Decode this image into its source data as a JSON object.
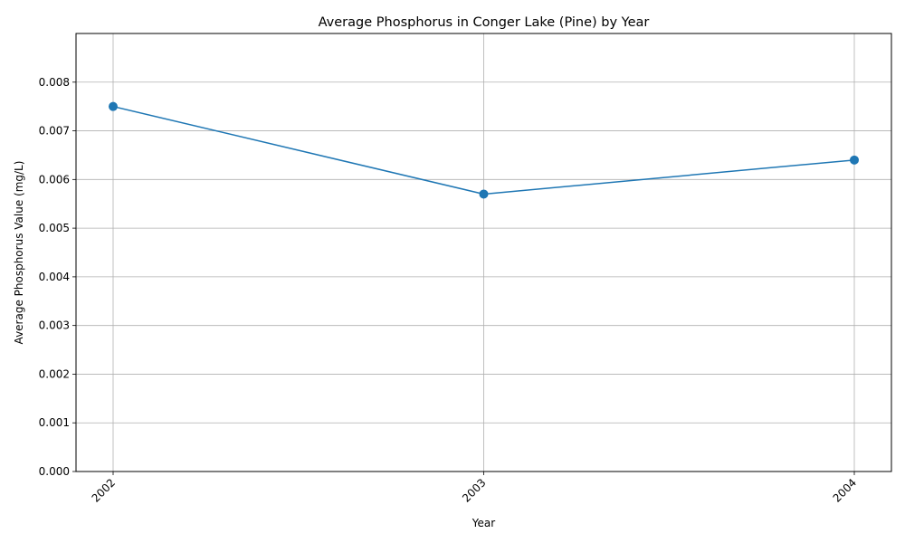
{
  "chart_data": {
    "type": "line",
    "title": "Average Phosphorus in Conger Lake (Pine) by Year",
    "xlabel": "Year",
    "ylabel": "Average Phosphorus Value (mg/L)",
    "categories": [
      "2002",
      "2003",
      "2004"
    ],
    "series": [
      {
        "values": [
          0.0075,
          0.0057,
          0.0064
        ],
        "color": "#1f77b4",
        "marker": "circle"
      }
    ],
    "ylim": [
      0,
      0.009
    ],
    "yticks": [
      0,
      0.001,
      0.002,
      0.003,
      0.004,
      0.005,
      0.006,
      0.007,
      0.008
    ],
    "ytick_labels": [
      "0.000",
      "0.001",
      "0.002",
      "0.003",
      "0.004",
      "0.005",
      "0.006",
      "0.007",
      "0.008"
    ],
    "xtick_rotation": 45,
    "grid": true
  }
}
